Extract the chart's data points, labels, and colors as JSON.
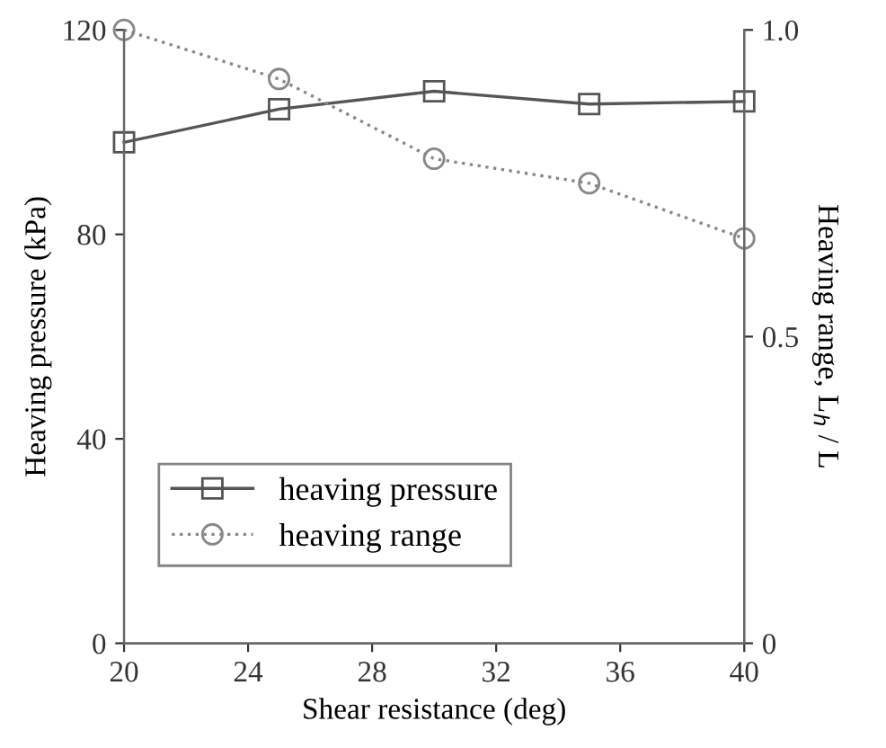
{
  "chart_data": {
    "type": "line",
    "xlabel": "Shear resistance (deg)",
    "ylabel": "Heaving pressure (kPa)",
    "y2label": "Heaving range, L$_{h}$ / L",
    "x": [
      20,
      25,
      30,
      35,
      40
    ],
    "xlim": [
      20,
      40
    ],
    "xticks": [
      20,
      24,
      28,
      32,
      36,
      40
    ],
    "ylim": [
      0,
      120
    ],
    "yticks": [
      0,
      40,
      80,
      120
    ],
    "y2lim": [
      0,
      1.0
    ],
    "y2ticks": [
      0,
      {
        "value": 0.5,
        "label": "0.5"
      },
      {
        "value": 1.0,
        "label": "1.0"
      }
    ],
    "legend": "bottom left",
    "grid": false,
    "series": [
      {
        "name": "heaving pressure",
        "color": "#555555",
        "values": [
          98,
          104.5,
          108,
          105.5,
          106
        ],
        "marker": "square",
        "line_style": "solid"
      },
      {
        "name": "heaving range",
        "color": "#888888",
        "values": [
          1.0,
          0.92,
          0.79,
          0.75,
          0.66
        ],
        "marker": "circle",
        "line_style": "dotted",
        "axis": "y2"
      }
    ]
  }
}
